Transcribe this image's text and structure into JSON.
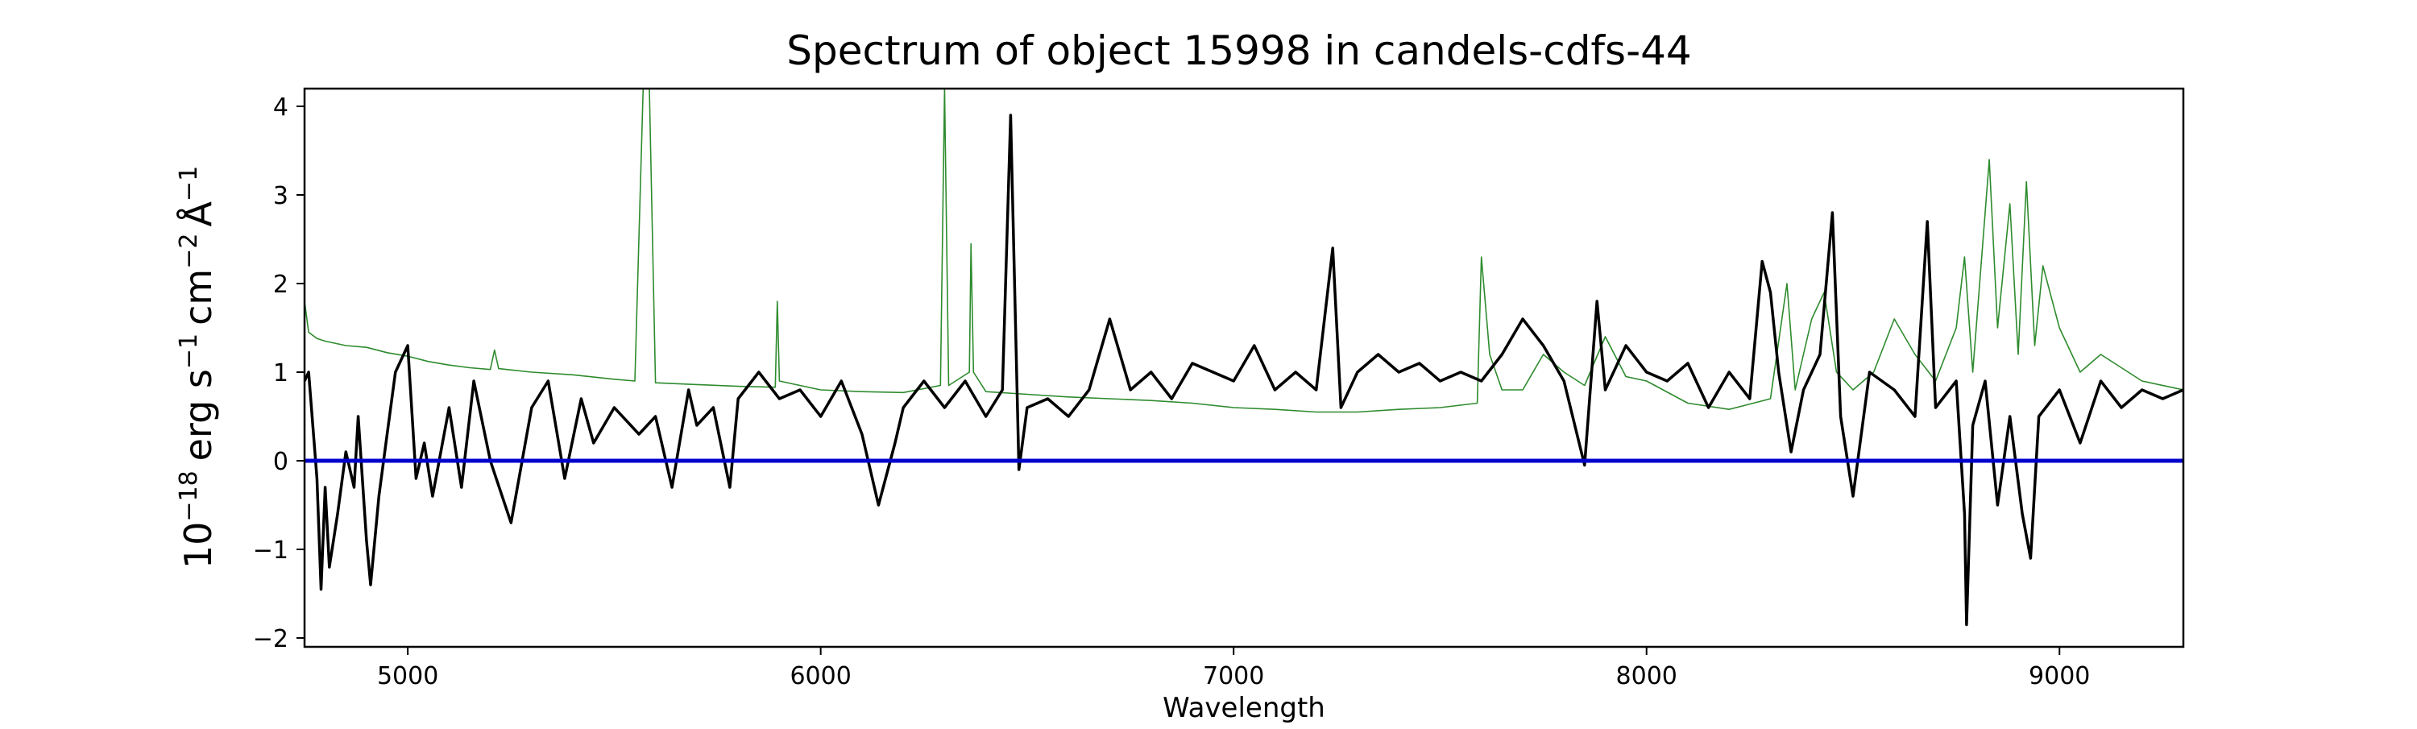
{
  "chart_data": {
    "type": "line",
    "title": "Spectrum of object 15998 in candels-cdfs-44",
    "xlabel": "Wavelength",
    "ylabel": {
      "base": "10",
      "exp": "−18",
      "unit_erg": "erg s",
      "exp_s": "−1",
      "unit_cm": "cm",
      "exp_cm": "−2",
      "unit_A": "Å",
      "exp_A": "−1"
    },
    "xlim": [
      4750,
      9300
    ],
    "ylim": [
      -2.1,
      4.2
    ],
    "xticks": [
      5000,
      6000,
      7000,
      8000,
      9000
    ],
    "xtick_labels": [
      "5000",
      "6000",
      "7000",
      "8000",
      "9000"
    ],
    "yticks": [
      -2,
      -1,
      0,
      1,
      2,
      3,
      4
    ],
    "ytick_labels": [
      "−2",
      "−1",
      "0",
      "1",
      "2",
      "3",
      "4"
    ],
    "grid": false,
    "series": [
      {
        "color": "#2e8b2e",
        "points": [
          [
            4750,
            1.8
          ],
          [
            4760,
            1.45
          ],
          [
            4780,
            1.38
          ],
          [
            4800,
            1.35
          ],
          [
            4850,
            1.3
          ],
          [
            4900,
            1.28
          ],
          [
            4950,
            1.22
          ],
          [
            5000,
            1.18
          ],
          [
            5050,
            1.12
          ],
          [
            5100,
            1.08
          ],
          [
            5150,
            1.05
          ],
          [
            5200,
            1.03
          ],
          [
            5210,
            1.25
          ],
          [
            5220,
            1.04
          ],
          [
            5300,
            1.0
          ],
          [
            5400,
            0.97
          ],
          [
            5500,
            0.92
          ],
          [
            5550,
            0.9
          ],
          [
            5570,
            4.2
          ],
          [
            5585,
            4.2
          ],
          [
            5600,
            0.88
          ],
          [
            5700,
            0.86
          ],
          [
            5800,
            0.84
          ],
          [
            5890,
            0.83
          ],
          [
            5895,
            1.8
          ],
          [
            5900,
            0.9
          ],
          [
            6000,
            0.8
          ],
          [
            6100,
            0.78
          ],
          [
            6200,
            0.77
          ],
          [
            6290,
            0.85
          ],
          [
            6300,
            4.2
          ],
          [
            6310,
            0.85
          ],
          [
            6360,
            1.0
          ],
          [
            6364,
            2.45
          ],
          [
            6370,
            1.0
          ],
          [
            6400,
            0.78
          ],
          [
            6500,
            0.75
          ],
          [
            6600,
            0.72
          ],
          [
            6700,
            0.7
          ],
          [
            6800,
            0.68
          ],
          [
            6900,
            0.65
          ],
          [
            7000,
            0.6
          ],
          [
            7100,
            0.58
          ],
          [
            7200,
            0.55
          ],
          [
            7300,
            0.55
          ],
          [
            7400,
            0.58
          ],
          [
            7500,
            0.6
          ],
          [
            7590,
            0.65
          ],
          [
            7600,
            2.3
          ],
          [
            7620,
            1.2
          ],
          [
            7650,
            0.8
          ],
          [
            7700,
            0.8
          ],
          [
            7750,
            1.2
          ],
          [
            7800,
            1.0
          ],
          [
            7850,
            0.85
          ],
          [
            7900,
            1.4
          ],
          [
            7950,
            0.95
          ],
          [
            8000,
            0.9
          ],
          [
            8100,
            0.65
          ],
          [
            8200,
            0.58
          ],
          [
            8300,
            0.7
          ],
          [
            8340,
            2.0
          ],
          [
            8360,
            0.8
          ],
          [
            8400,
            1.6
          ],
          [
            8430,
            1.9
          ],
          [
            8460,
            1.0
          ],
          [
            8500,
            0.8
          ],
          [
            8550,
            1.0
          ],
          [
            8600,
            1.6
          ],
          [
            8650,
            1.2
          ],
          [
            8700,
            0.9
          ],
          [
            8750,
            1.5
          ],
          [
            8770,
            2.3
          ],
          [
            8790,
            1.0
          ],
          [
            8830,
            3.4
          ],
          [
            8850,
            1.5
          ],
          [
            8880,
            2.9
          ],
          [
            8900,
            1.2
          ],
          [
            8920,
            3.15
          ],
          [
            8940,
            1.3
          ],
          [
            8960,
            2.2
          ],
          [
            9000,
            1.5
          ],
          [
            9050,
            1.0
          ],
          [
            9100,
            1.2
          ],
          [
            9200,
            0.9
          ],
          [
            9300,
            0.8
          ]
        ]
      },
      {
        "color": "#000000",
        "points": [
          [
            4750,
            0.9
          ],
          [
            4760,
            1.0
          ],
          [
            4780,
            -0.2
          ],
          [
            4790,
            -1.45
          ],
          [
            4800,
            -0.3
          ],
          [
            4810,
            -1.2
          ],
          [
            4830,
            -0.6
          ],
          [
            4850,
            0.1
          ],
          [
            4870,
            -0.3
          ],
          [
            4880,
            0.5
          ],
          [
            4900,
            -0.9
          ],
          [
            4910,
            -1.4
          ],
          [
            4930,
            -0.4
          ],
          [
            4950,
            0.3
          ],
          [
            4970,
            1.0
          ],
          [
            5000,
            1.3
          ],
          [
            5020,
            -0.2
          ],
          [
            5040,
            0.2
          ],
          [
            5060,
            -0.4
          ],
          [
            5100,
            0.6
          ],
          [
            5130,
            -0.3
          ],
          [
            5160,
            0.9
          ],
          [
            5200,
            0.0
          ],
          [
            5250,
            -0.7
          ],
          [
            5300,
            0.6
          ],
          [
            5340,
            0.9
          ],
          [
            5380,
            -0.2
          ],
          [
            5420,
            0.7
          ],
          [
            5450,
            0.2
          ],
          [
            5500,
            0.6
          ],
          [
            5560,
            0.3
          ],
          [
            5600,
            0.5
          ],
          [
            5640,
            -0.3
          ],
          [
            5680,
            0.8
          ],
          [
            5700,
            0.4
          ],
          [
            5740,
            0.6
          ],
          [
            5780,
            -0.3
          ],
          [
            5800,
            0.7
          ],
          [
            5850,
            1.0
          ],
          [
            5900,
            0.7
          ],
          [
            5950,
            0.8
          ],
          [
            6000,
            0.5
          ],
          [
            6050,
            0.9
          ],
          [
            6100,
            0.3
          ],
          [
            6140,
            -0.5
          ],
          [
            6180,
            0.2
          ],
          [
            6200,
            0.6
          ],
          [
            6250,
            0.9
          ],
          [
            6300,
            0.6
          ],
          [
            6350,
            0.9
          ],
          [
            6400,
            0.5
          ],
          [
            6440,
            0.8
          ],
          [
            6460,
            3.9
          ],
          [
            6480,
            -0.1
          ],
          [
            6500,
            0.6
          ],
          [
            6550,
            0.7
          ],
          [
            6600,
            0.5
          ],
          [
            6650,
            0.8
          ],
          [
            6700,
            1.6
          ],
          [
            6750,
            0.8
          ],
          [
            6800,
            1.0
          ],
          [
            6850,
            0.7
          ],
          [
            6900,
            1.1
          ],
          [
            6950,
            1.0
          ],
          [
            7000,
            0.9
          ],
          [
            7050,
            1.3
          ],
          [
            7100,
            0.8
          ],
          [
            7150,
            1.0
          ],
          [
            7200,
            0.8
          ],
          [
            7240,
            2.4
          ],
          [
            7260,
            0.6
          ],
          [
            7300,
            1.0
          ],
          [
            7350,
            1.2
          ],
          [
            7400,
            1.0
          ],
          [
            7450,
            1.1
          ],
          [
            7500,
            0.9
          ],
          [
            7550,
            1.0
          ],
          [
            7600,
            0.9
          ],
          [
            7650,
            1.2
          ],
          [
            7700,
            1.6
          ],
          [
            7750,
            1.3
          ],
          [
            7800,
            0.9
          ],
          [
            7850,
            -0.05
          ],
          [
            7880,
            1.8
          ],
          [
            7900,
            0.8
          ],
          [
            7950,
            1.3
          ],
          [
            8000,
            1.0
          ],
          [
            8050,
            0.9
          ],
          [
            8100,
            1.1
          ],
          [
            8150,
            0.6
          ],
          [
            8200,
            1.0
          ],
          [
            8250,
            0.7
          ],
          [
            8280,
            2.25
          ],
          [
            8300,
            1.9
          ],
          [
            8320,
            1.0
          ],
          [
            8350,
            0.1
          ],
          [
            8380,
            0.8
          ],
          [
            8420,
            1.2
          ],
          [
            8450,
            2.8
          ],
          [
            8470,
            0.5
          ],
          [
            8500,
            -0.4
          ],
          [
            8540,
            1.0
          ],
          [
            8600,
            0.8
          ],
          [
            8650,
            0.5
          ],
          [
            8680,
            2.7
          ],
          [
            8700,
            0.6
          ],
          [
            8750,
            0.9
          ],
          [
            8770,
            -0.6
          ],
          [
            8775,
            -1.85
          ],
          [
            8790,
            0.4
          ],
          [
            8820,
            0.9
          ],
          [
            8850,
            -0.5
          ],
          [
            8880,
            0.5
          ],
          [
            8910,
            -0.6
          ],
          [
            8930,
            -1.1
          ],
          [
            8950,
            0.5
          ],
          [
            9000,
            0.8
          ],
          [
            9050,
            0.2
          ],
          [
            9100,
            0.9
          ],
          [
            9150,
            0.6
          ],
          [
            9200,
            0.8
          ],
          [
            9250,
            0.7
          ],
          [
            9300,
            0.8
          ]
        ]
      },
      {
        "color": "#0000cc",
        "points": [
          [
            4750,
            0
          ],
          [
            9300,
            0
          ]
        ]
      }
    ]
  }
}
